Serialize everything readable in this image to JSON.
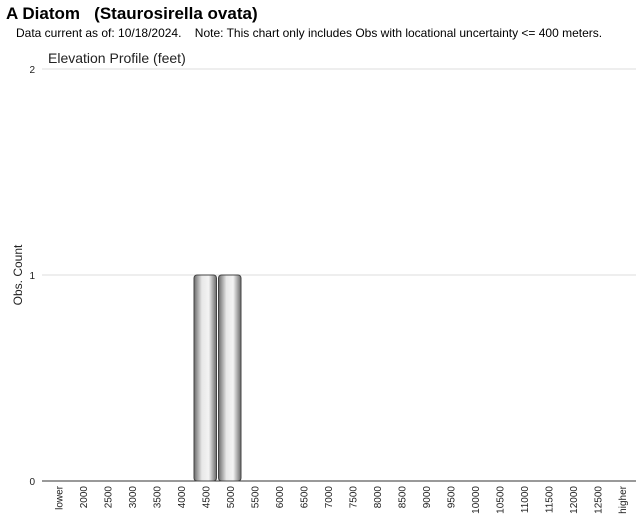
{
  "header": {
    "common_name": "A Diatom",
    "scientific_name": "(Staurosirella ovata)",
    "data_current": "Data current as of: 10/18/2024.",
    "note": "Note: This chart only includes Obs with locational uncertainty <= 400 meters."
  },
  "chart_data": {
    "type": "bar",
    "title": "Elevation Profile (feet)",
    "xlabel": "",
    "ylabel": "Obs. Count",
    "ylim": [
      0,
      2
    ],
    "yticks": [
      "0",
      "1",
      "2"
    ],
    "grid": true,
    "categories": [
      "lower",
      "2000",
      "2500",
      "3000",
      "3500",
      "4000",
      "4500",
      "5000",
      "5500",
      "6000",
      "6500",
      "7000",
      "7500",
      "8000",
      "8500",
      "9000",
      "9500",
      "10000",
      "10500",
      "11000",
      "11500",
      "12000",
      "12500",
      "higher"
    ],
    "values": [
      0,
      0,
      0,
      0,
      0,
      0,
      1,
      1,
      0,
      0,
      0,
      0,
      0,
      0,
      0,
      0,
      0,
      0,
      0,
      0,
      0,
      0,
      0,
      0
    ],
    "bar_color": "#b0b0b0"
  }
}
